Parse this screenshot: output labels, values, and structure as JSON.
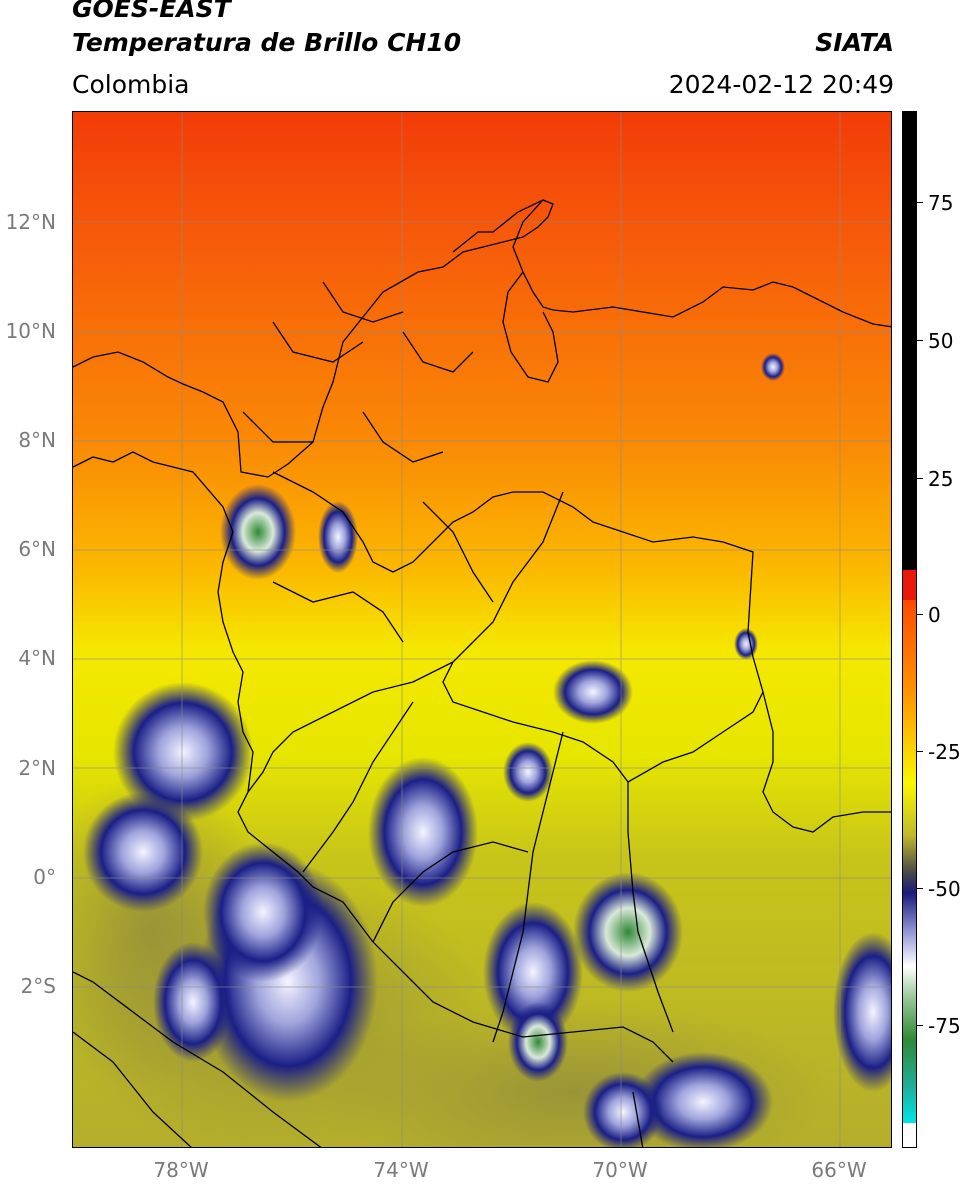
{
  "header": {
    "line1": "GOES-EAST",
    "line2": "Temperatura de Brillo CH10",
    "region": "Colombia",
    "source": "SIATA",
    "datetime": "2024-02-12 20:49"
  },
  "axes": {
    "lat_labels": [
      "12°N",
      "10°N",
      "8°N",
      "6°N",
      "4°N",
      "2°N",
      "0°",
      "2°S"
    ],
    "lon_labels": [
      "78°W",
      "74°W",
      "70°W",
      "66°W"
    ]
  },
  "colorbar": {
    "labels": [
      "75",
      "50",
      "25",
      "0",
      "-25",
      "-50",
      "-75"
    ],
    "colors": {
      "black": "#000000",
      "red": "#e8180a",
      "orange": "#ff8a00",
      "yellow": "#f8f800",
      "olive": "#b5ae2a",
      "navy": "#1a1a7a",
      "white": "#ffffff",
      "green": "#2f8a36",
      "teal": "#1fae9a",
      "cyan": "#00e5e5"
    }
  }
}
